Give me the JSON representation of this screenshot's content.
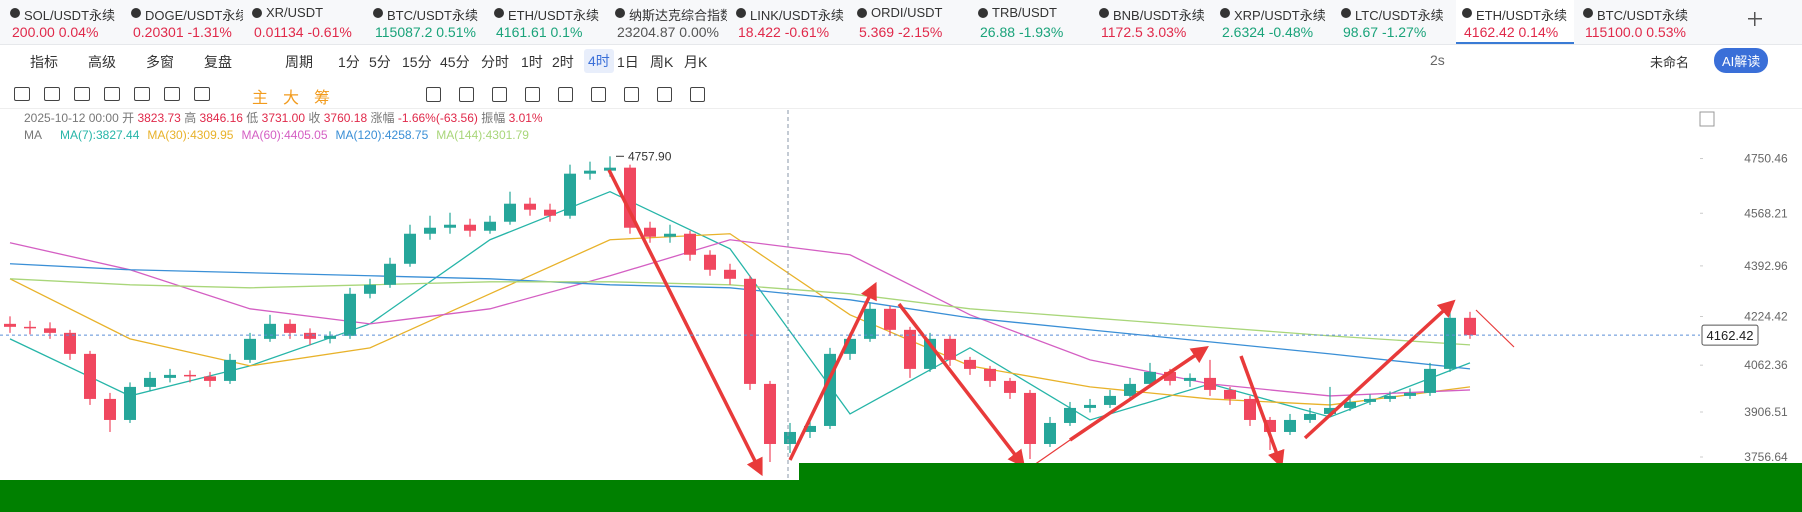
{
  "tickers": [
    {
      "name": "SOL/USDT永续",
      "price": "200.00",
      "change": "0.04%",
      "color": "#e0294a"
    },
    {
      "name": "DOGE/USDT永续",
      "price": "0.20301",
      "change": "-1.31%",
      "color": "#e0294a"
    },
    {
      "name": "XR/USDT",
      "price": "0.01134",
      "change": "-0.61%",
      "color": "#e0294a"
    },
    {
      "name": "BTC/USDT永续",
      "price": "115087.2",
      "change": "0.51%",
      "color": "#1aa37a"
    },
    {
      "name": "ETH/USDT永续",
      "price": "4161.61",
      "change": "0.1%",
      "color": "#1aa37a"
    },
    {
      "name": "纳斯达克综合指数",
      "price": "23204.87",
      "change": "0.00%",
      "color": "#555555"
    },
    {
      "name": "LINK/USDT永续",
      "price": "18.422",
      "change": "-0.61%",
      "color": "#e0294a"
    },
    {
      "name": "ORDI/USDT",
      "price": "5.369",
      "change": "-2.15%",
      "color": "#e0294a"
    },
    {
      "name": "TRB/USDT",
      "price": "26.88",
      "change": "-1.93%",
      "color": "#1aa37a"
    },
    {
      "name": "BNB/USDT永续",
      "price": "1172.5",
      "change": "3.03%",
      "color": "#e0294a"
    },
    {
      "name": "XRP/USDT永续",
      "price": "2.6324",
      "change": "-0.48%",
      "color": "#1aa37a"
    },
    {
      "name": "LTC/USDT永续",
      "price": "98.67",
      "change": "-1.27%",
      "color": "#1aa37a"
    },
    {
      "name": "ETH/USDT永续",
      "price": "4162.42",
      "change": "0.14%",
      "color": "#e0294a",
      "active": true
    },
    {
      "name": "BTC/USDT永续",
      "price": "115100.0",
      "change": "0.53%",
      "color": "#e0294a"
    }
  ],
  "toolbar": {
    "tools": [
      "指标",
      "高级",
      "多窗",
      "复盘"
    ],
    "period_menu": "周期",
    "periods": [
      "1分",
      "5分",
      "15分",
      "45分",
      "分时",
      "1时",
      "2时",
      "4时",
      "1日",
      "周K",
      "月K"
    ],
    "active_period": 7,
    "refresh": "2s",
    "layout_name": "未命名",
    "ai_button": "AI解读"
  },
  "drawing_toolbar": {
    "labels": [
      "主",
      "大",
      "筹"
    ]
  },
  "info": {
    "datetime": "2025-10-12 00:00",
    "open_label": "开",
    "open": "3823.73",
    "high_label": "高",
    "high": "3846.16",
    "low_label": "低",
    "low": "3731.00",
    "close_label": "收",
    "close": "3760.18",
    "change_label": "涨幅",
    "change": "-1.66%(-63.56)",
    "amplitude_label": "振幅",
    "amplitude": "3.01%"
  },
  "ma_legend": {
    "title": "MA",
    "items": [
      {
        "label": "MA(7):3827.44",
        "color": "#26b5a8"
      },
      {
        "label": "MA(30):4309.95",
        "color": "#e8b22a"
      },
      {
        "label": "MA(60):4405.05",
        "color": "#d45fc3"
      },
      {
        "label": "MA(120):4258.75",
        "color": "#3a8fd6"
      },
      {
        "label": "MA(144):4301.79",
        "color": "#a9d67a"
      }
    ]
  },
  "chart_data": {
    "type": "candlestick",
    "up_color": "#26a69a",
    "down_color": "#f0475f",
    "ylim": [
      3573.5,
      4912
    ],
    "yticks": [
      4750.46,
      4568.21,
      4392.96,
      4224.42,
      4062.36,
      3906.51,
      3756.64
    ],
    "peak": {
      "index": 30,
      "value": 4757.9,
      "label": "4757.90"
    },
    "candles": [
      [
        4200,
        4225,
        4170,
        4190
      ],
      [
        4190,
        4210,
        4165,
        4185
      ],
      [
        4185,
        4205,
        4150,
        4170
      ],
      [
        4170,
        4180,
        4080,
        4100
      ],
      [
        4100,
        4110,
        3930,
        3950
      ],
      [
        3950,
        3970,
        3840,
        3880
      ],
      [
        3880,
        4005,
        3870,
        3990
      ],
      [
        3990,
        4040,
        3975,
        4020
      ],
      [
        4020,
        4050,
        4005,
        4030
      ],
      [
        4030,
        4045,
        4005,
        4025
      ],
      [
        4025,
        4040,
        3990,
        4010
      ],
      [
        4010,
        4100,
        4000,
        4080
      ],
      [
        4080,
        4170,
        4070,
        4150
      ],
      [
        4150,
        4230,
        4140,
        4200
      ],
      [
        4200,
        4215,
        4150,
        4170
      ],
      [
        4170,
        4185,
        4130,
        4150
      ],
      [
        4150,
        4175,
        4135,
        4160
      ],
      [
        4160,
        4320,
        4150,
        4300
      ],
      [
        4300,
        4350,
        4285,
        4330
      ],
      [
        4330,
        4420,
        4320,
        4400
      ],
      [
        4400,
        4530,
        4390,
        4500
      ],
      [
        4500,
        4560,
        4480,
        4520
      ],
      [
        4520,
        4570,
        4500,
        4530
      ],
      [
        4530,
        4550,
        4490,
        4510
      ],
      [
        4510,
        4560,
        4500,
        4540
      ],
      [
        4540,
        4640,
        4530,
        4600
      ],
      [
        4600,
        4620,
        4560,
        4580
      ],
      [
        4580,
        4600,
        4540,
        4560
      ],
      [
        4560,
        4730,
        4550,
        4700
      ],
      [
        4700,
        4740,
        4680,
        4710
      ],
      [
        4710,
        4757.9,
        4690,
        4720
      ],
      [
        4720,
        4730,
        4500,
        4520
      ],
      [
        4520,
        4540,
        4470,
        4490
      ],
      [
        4490,
        4530,
        4470,
        4500
      ],
      [
        4500,
        4510,
        4410,
        4430
      ],
      [
        4430,
        4445,
        4360,
        4380
      ],
      [
        4380,
        4400,
        4330,
        4350
      ],
      [
        4350,
        4360,
        3980,
        4000
      ],
      [
        4000,
        4010,
        3740,
        3800
      ],
      [
        3800,
        3870,
        3770,
        3840
      ],
      [
        3840,
        3880,
        3820,
        3860
      ],
      [
        3860,
        4120,
        3850,
        4100
      ],
      [
        4100,
        4170,
        4080,
        4150
      ],
      [
        4150,
        4270,
        4140,
        4250
      ],
      [
        4250,
        4260,
        4160,
        4180
      ],
      [
        4180,
        4190,
        4020,
        4050
      ],
      [
        4050,
        4170,
        4040,
        4150
      ],
      [
        4150,
        4160,
        4060,
        4080
      ],
      [
        4080,
        4090,
        4030,
        4050
      ],
      [
        4050,
        4060,
        3990,
        4010
      ],
      [
        4010,
        4020,
        3950,
        3970
      ],
      [
        3970,
        3980,
        3750,
        3800
      ],
      [
        3800,
        3890,
        3790,
        3870
      ],
      [
        3870,
        3940,
        3860,
        3920
      ],
      [
        3920,
        3950,
        3905,
        3930
      ],
      [
        3930,
        3980,
        3920,
        3960
      ],
      [
        3960,
        4020,
        3950,
        4000
      ],
      [
        4000,
        4070,
        3990,
        4040
      ],
      [
        4040,
        4050,
        3995,
        4010
      ],
      [
        4010,
        4035,
        3990,
        4020
      ],
      [
        4020,
        4080,
        3960,
        3980
      ],
      [
        3980,
        3990,
        3930,
        3950
      ],
      [
        3950,
        3960,
        3860,
        3880
      ],
      [
        3880,
        3890,
        3780,
        3840
      ],
      [
        3840,
        3900,
        3830,
        3880
      ],
      [
        3880,
        3920,
        3870,
        3900
      ],
      [
        3900,
        3990,
        3890,
        3920
      ],
      [
        3920,
        3960,
        3910,
        3940
      ],
      [
        3940,
        3965,
        3930,
        3950
      ],
      [
        3950,
        3975,
        3940,
        3960
      ],
      [
        3960,
        3985,
        3950,
        3970
      ],
      [
        3970,
        4070,
        3960,
        4050
      ],
      [
        4050,
        4260,
        4040,
        4220
      ],
      [
        4220,
        4240,
        4150,
        4162.42
      ]
    ],
    "ma_index": [
      0,
      6,
      12,
      18,
      24,
      30,
      36,
      42,
      48,
      54,
      60,
      66,
      73
    ],
    "ma_lines": [
      {
        "color": "#26b5a8",
        "values": [
          4150,
          3960,
          4060,
          4200,
          4480,
          4640,
          4450,
          3900,
          4120,
          3880,
          4000,
          3890,
          4070
        ]
      },
      {
        "color": "#e8b22a",
        "values": [
          4350,
          4150,
          4060,
          4120,
          4300,
          4480,
          4500,
          4230,
          4060,
          3990,
          3950,
          3930,
          3990
        ]
      },
      {
        "color": "#d45fc3",
        "values": [
          4470,
          4380,
          4250,
          4200,
          4250,
          4360,
          4480,
          4430,
          4230,
          4080,
          4000,
          3960,
          3980
        ]
      },
      {
        "color": "#3a8fd6",
        "values": [
          4400,
          4380,
          4370,
          4360,
          4350,
          4330,
          4320,
          4280,
          4220,
          4180,
          4140,
          4100,
          4050
        ]
      },
      {
        "color": "#a9d67a",
        "values": [
          4350,
          4330,
          4320,
          4330,
          4340,
          4340,
          4330,
          4300,
          4250,
          4220,
          4190,
          4160,
          4130
        ]
      }
    ]
  }
}
